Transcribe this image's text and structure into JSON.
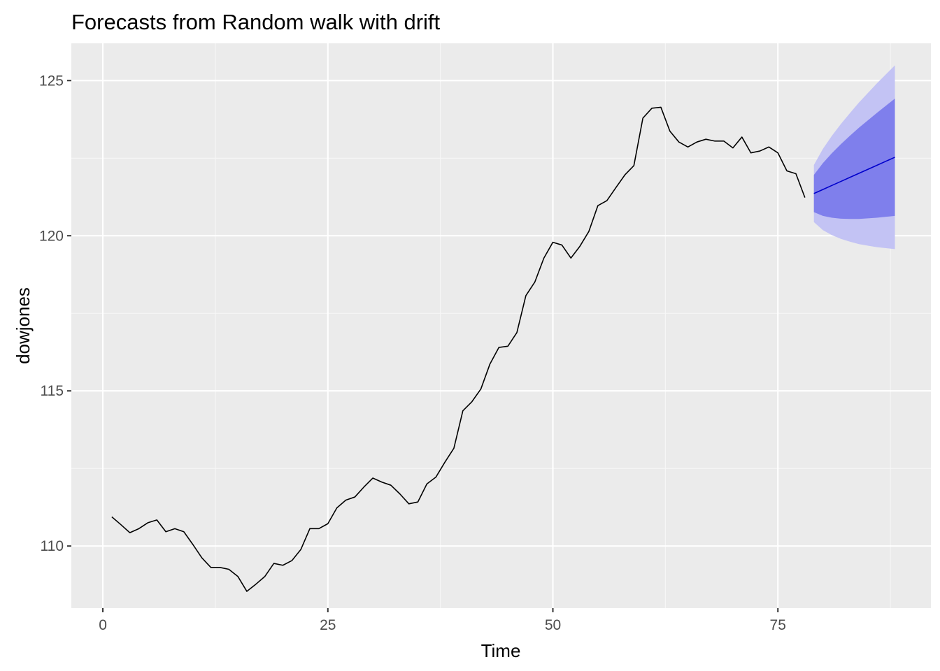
{
  "chart_data": {
    "type": "line",
    "title": "Forecasts from Random walk with drift",
    "xlabel": "Time",
    "ylabel": "dowjones",
    "xlim": [
      -3.5,
      92
    ],
    "ylim": [
      108.0,
      126.2
    ],
    "xticks": [
      0,
      25,
      50,
      75
    ],
    "yticks": [
      110,
      115,
      120,
      125
    ],
    "x_minor_gridlines": [
      12.5,
      37.5,
      62.5,
      87.5
    ],
    "y_minor_gridlines": [
      112.5,
      117.5,
      122.5
    ],
    "grid": true,
    "legend": "none",
    "series": [
      {
        "x": [
          1,
          2,
          3,
          4,
          5,
          6,
          7,
          8,
          9,
          10,
          11,
          12,
          13,
          14,
          15,
          16,
          17,
          18,
          19,
          20,
          21,
          22,
          23,
          24,
          25,
          26,
          27,
          28,
          29,
          30,
          31,
          32,
          33,
          34,
          35,
          36,
          37,
          38,
          39,
          40,
          41,
          42,
          43,
          44,
          45,
          46,
          47,
          48,
          49,
          50,
          51,
          52,
          53,
          54,
          55,
          56,
          57,
          58,
          59,
          60,
          61,
          62,
          63,
          64,
          65,
          66,
          67,
          68,
          69,
          70,
          71,
          72,
          73,
          74,
          75,
          76,
          77,
          78
        ],
        "values": [
          110.94,
          110.69,
          110.43,
          110.56,
          110.75,
          110.84,
          110.46,
          110.56,
          110.46,
          110.05,
          109.62,
          109.31,
          109.31,
          109.25,
          109.02,
          108.54,
          108.77,
          109.02,
          109.44,
          109.38,
          109.53,
          109.89,
          110.56,
          110.56,
          110.72,
          111.23,
          111.48,
          111.58,
          111.9,
          112.19,
          112.06,
          111.96,
          111.68,
          111.36,
          111.42,
          112.0,
          112.22,
          112.7,
          113.15,
          114.36,
          114.65,
          115.06,
          115.86,
          116.4,
          116.44,
          116.88,
          118.07,
          118.51,
          119.28,
          119.79,
          119.7,
          119.28,
          119.66,
          120.14,
          120.97,
          121.13,
          121.55,
          121.96,
          122.26,
          123.79,
          124.11,
          124.14,
          123.37,
          123.02,
          122.86,
          123.02,
          123.11,
          123.05,
          123.05,
          122.83,
          123.18,
          122.67,
          122.73,
          122.86,
          122.67,
          122.09,
          122.0,
          121.23
        ]
      },
      {
        "x": [
          79,
          80,
          81,
          82,
          83,
          84,
          85,
          86,
          87,
          88
        ],
        "values": [
          121.36,
          121.49,
          121.62,
          121.75,
          121.88,
          122.01,
          122.14,
          122.27,
          122.4,
          122.53
        ],
        "upper80": [
          121.96,
          122.34,
          122.66,
          122.95,
          123.22,
          123.48,
          123.72,
          123.96,
          124.19,
          124.42
        ],
        "lower80": [
          120.76,
          120.64,
          120.58,
          120.55,
          120.54,
          120.54,
          120.56,
          120.58,
          120.61,
          120.64
        ],
        "upper95": [
          122.28,
          122.8,
          123.22,
          123.6,
          123.95,
          124.29,
          124.6,
          124.91,
          125.2,
          125.49
        ],
        "lower95": [
          120.44,
          120.18,
          120.02,
          119.9,
          119.81,
          119.73,
          119.68,
          119.63,
          119.6,
          119.57
        ]
      }
    ],
    "colors": {
      "panel": "#ebebeb",
      "grid_major": "#ffffff",
      "grid_minor": "#f7f7f7",
      "history_line": "#000000",
      "forecast_line": "#0000cc",
      "band80": "#7f7fec",
      "band95": "#c3c3f4",
      "tick_text": "#4d4d4d"
    }
  }
}
